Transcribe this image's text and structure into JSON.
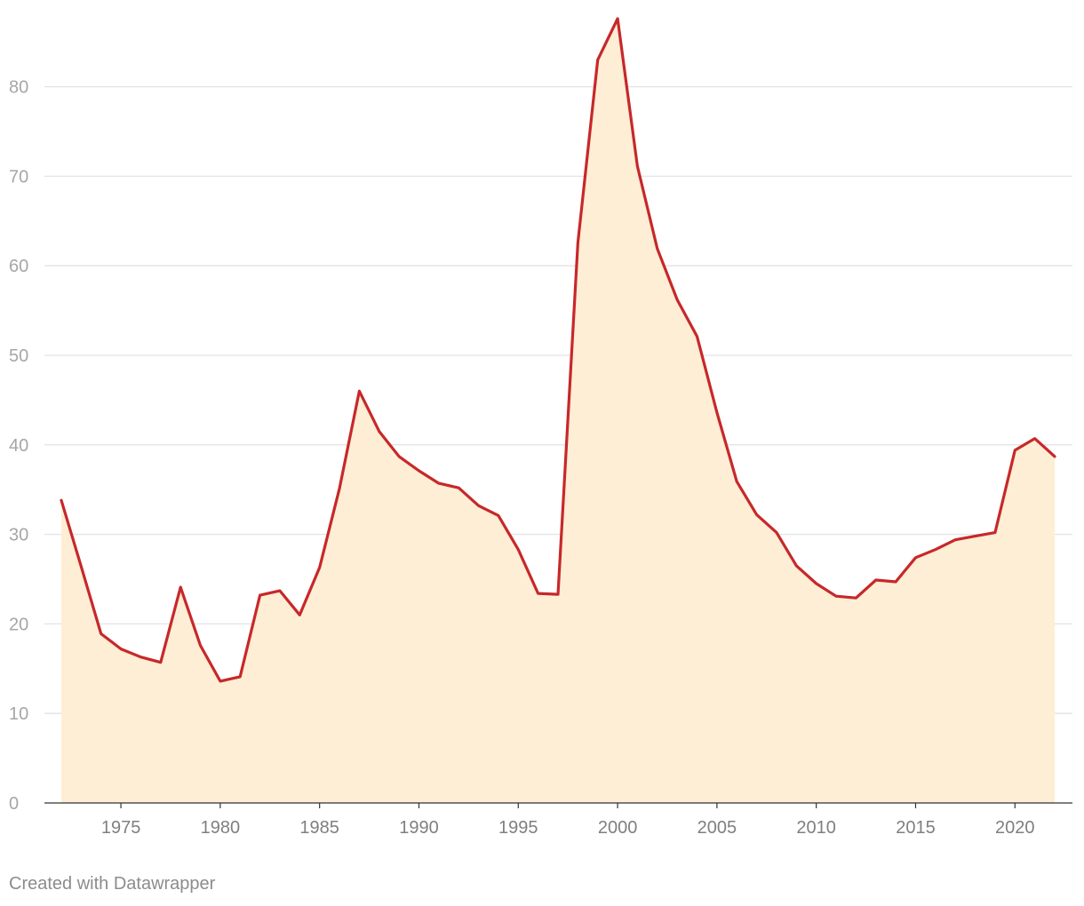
{
  "chart_data": {
    "type": "area",
    "title": "",
    "xlabel": "",
    "ylabel": "",
    "x": [
      1972,
      1973,
      1974,
      1975,
      1976,
      1977,
      1978,
      1979,
      1980,
      1981,
      1982,
      1983,
      1984,
      1985,
      1986,
      1987,
      1988,
      1989,
      1990,
      1991,
      1992,
      1993,
      1994,
      1995,
      1996,
      1997,
      1998,
      1999,
      2000,
      2001,
      2002,
      2003,
      2004,
      2005,
      2006,
      2007,
      2008,
      2009,
      2010,
      2011,
      2012,
      2013,
      2014,
      2015,
      2016,
      2017,
      2018,
      2019,
      2020,
      2021,
      2022
    ],
    "series": [
      {
        "values": [
          33.8,
          26.4,
          18.9,
          17.2,
          16.3,
          15.7,
          24.1,
          17.6,
          13.6,
          14.1,
          23.2,
          23.7,
          21.0,
          26.3,
          35.1,
          46.0,
          41.5,
          38.7,
          37.1,
          35.7,
          35.2,
          33.2,
          32.1,
          28.3,
          23.4,
          23.3,
          62.6,
          83.0,
          87.6,
          71.1,
          61.9,
          56.2,
          52.1,
          43.6,
          35.9,
          32.2,
          30.2,
          26.5,
          24.5,
          23.1,
          22.9,
          24.9,
          24.7,
          27.4,
          28.3,
          29.4,
          29.8,
          30.2,
          39.4,
          40.7,
          38.7
        ]
      }
    ],
    "xticks": [
      "1975",
      "1980",
      "1985",
      "1990",
      "1995",
      "2000",
      "2005",
      "2010",
      "2015",
      "2020"
    ],
    "yticks": [
      "0",
      "10",
      "20",
      "30",
      "40",
      "50",
      "60",
      "70",
      "80"
    ],
    "xlim": [
      1971,
      2023
    ],
    "ylim": [
      0,
      87.6
    ],
    "grid": true,
    "colors": {
      "line": "#c7282a",
      "fill": "#fdeed5"
    }
  },
  "credit": "Created with Datawrapper"
}
